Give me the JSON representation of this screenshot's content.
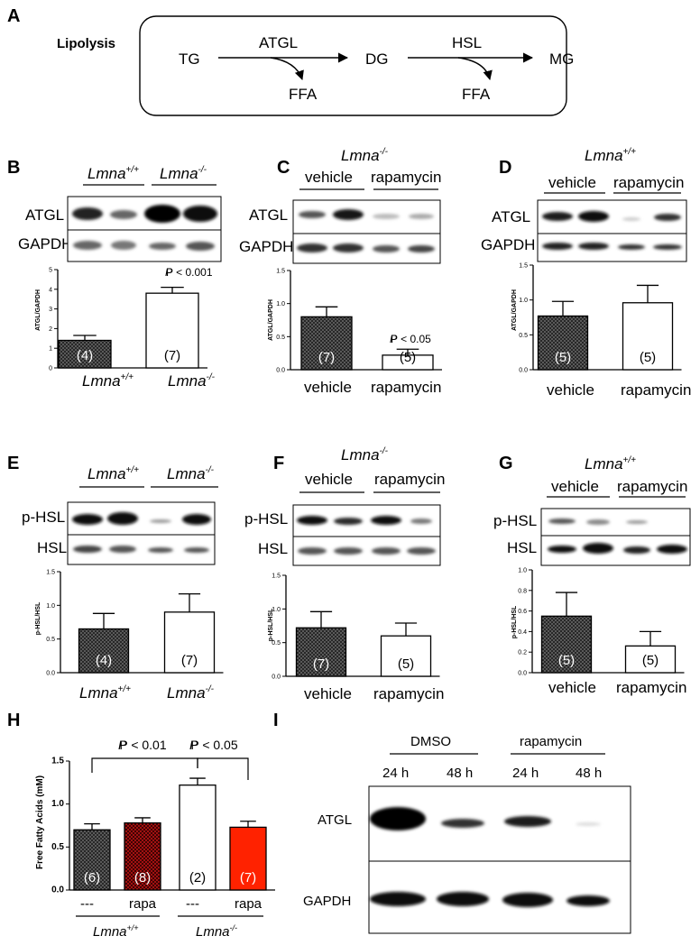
{
  "panelA": {
    "letter": "A",
    "title": "Lipolysis",
    "tg": "TG",
    "atgl": "ATGL",
    "dg": "DG",
    "hsl": "HSL",
    "mg": "MG",
    "ffa1": "FFA",
    "ffa2": "FFA"
  },
  "panelB": {
    "letter": "B",
    "lane_head_1": "Lmna",
    "lane_head_1_sup": "+/+",
    "lane_head_2": "Lmna",
    "lane_head_2_sup": "-/-",
    "row_1": "ATGL",
    "row_2": "GAPDH",
    "ylabel": "ATGL/GAPDH",
    "p_text": "P < 0.001",
    "x_1": "Lmna",
    "x_1_sup": "+/+",
    "x_2": "Lmna",
    "x_2_sup": "-/-",
    "n_1": "(4)",
    "n_2": "(7)"
  },
  "panelC": {
    "letter": "C",
    "genotype": "Lmna",
    "genotype_sup": "-/-",
    "lane_head_1": "vehicle",
    "lane_head_2": "rapamycin",
    "row_1": "ATGL",
    "row_2": "GAPDH",
    "ylabel": "ATGL/GAPDH",
    "p_text": "P < 0.05",
    "x_1": "vehicle",
    "x_2": "rapamycin",
    "n_1": "(7)",
    "n_2": "(5)"
  },
  "panelD": {
    "letter": "D",
    "genotype": "Lmna",
    "genotype_sup": "+/+",
    "lane_head_1": "vehicle",
    "lane_head_2": "rapamycin",
    "row_1": "ATGL",
    "row_2": "GAPDH",
    "ylabel": "ATGL/GAPDH",
    "x_1": "vehicle",
    "x_2": "rapamycin",
    "n_1": "(5)",
    "n_2": "(5)"
  },
  "panelE": {
    "letter": "E",
    "lane_head_1": "Lmna",
    "lane_head_1_sup": "+/+",
    "lane_head_2": "Lmna",
    "lane_head_2_sup": "-/-",
    "row_1": "p-HSL",
    "row_2": "HSL",
    "ylabel": "p-HSL/HSL",
    "x_1": "Lmna",
    "x_1_sup": "+/+",
    "x_2": "Lmna",
    "x_2_sup": "-/-",
    "n_1": "(4)",
    "n_2": "(7)"
  },
  "panelF": {
    "letter": "F",
    "genotype": "Lmna",
    "genotype_sup": "-/-",
    "lane_head_1": "vehicle",
    "lane_head_2": "rapamycin",
    "row_1": "p-HSL",
    "row_2": "HSL",
    "ylabel": "p-HSL/HSL",
    "x_1": "vehicle",
    "x_2": "rapamycin",
    "n_1": "(7)",
    "n_2": "(5)"
  },
  "panelG": {
    "letter": "G",
    "genotype": "Lmna",
    "genotype_sup": "+/+",
    "lane_head_1": "vehicle",
    "lane_head_2": "rapamycin",
    "row_1": "p-HSL",
    "row_2": "HSL",
    "ylabel": "p-HSL/HSL",
    "x_1": "vehicle",
    "x_2": "rapamycin",
    "n_1": "(5)",
    "n_2": "(5)"
  },
  "panelH": {
    "letter": "H",
    "ylabel": "Free Fatty Acids (mM)",
    "p_1": "P < 0.01",
    "p_2": "P < 0.05",
    "x_1": "---",
    "x_2": "rapa",
    "x_3": "---",
    "x_4": "rapa",
    "group_1": "Lmna",
    "group_1_sup": "+/+",
    "group_2": "Lmna",
    "group_2_sup": "-/-",
    "n_1": "(6)",
    "n_2": "(8)",
    "n_3": "(2)",
    "n_4": "(7)"
  },
  "panelI": {
    "letter": "I",
    "group_1": "DMSO",
    "group_2": "rapamycin",
    "t_1": "24 h",
    "t_2": "48 h",
    "t_3": "24 h",
    "t_4": "48 h",
    "row_1": "ATGL",
    "row_2": "GAPDH"
  },
  "chart_data": [
    {
      "panel": "B",
      "type": "bar",
      "categories": [
        "Lmna+/+",
        "Lmna-/-"
      ],
      "values": [
        1.4,
        3.8
      ],
      "errors": [
        0.25,
        0.3
      ],
      "n": [
        4,
        7
      ],
      "ylabel": "ATGL/GAPDH",
      "ylim": [
        0,
        5
      ],
      "yticks": [
        "0",
        "1",
        "2",
        "3",
        "4",
        "5"
      ],
      "fills": [
        "hatch-dark",
        "white"
      ]
    },
    {
      "panel": "C",
      "type": "bar",
      "categories": [
        "vehicle",
        "rapamycin"
      ],
      "values": [
        0.8,
        0.22
      ],
      "errors": [
        0.15,
        0.09
      ],
      "n": [
        7,
        5
      ],
      "ylabel": "ATGL/GAPDH",
      "ylim": [
        0,
        1.5
      ],
      "yticks": [
        "0.0",
        "0.5",
        "1.0",
        "1.5"
      ],
      "fills": [
        "hatch-dark",
        "white"
      ]
    },
    {
      "panel": "D",
      "type": "bar",
      "categories": [
        "vehicle",
        "rapamycin"
      ],
      "values": [
        0.77,
        0.96
      ],
      "errors": [
        0.21,
        0.25
      ],
      "n": [
        5,
        5
      ],
      "ylabel": "ATGL/GAPDH",
      "ylim": [
        0,
        1.5
      ],
      "yticks": [
        "0.0",
        "0.5",
        "1.0",
        "1.5"
      ],
      "fills": [
        "hatch-dark",
        "white"
      ]
    },
    {
      "panel": "E",
      "type": "bar",
      "categories": [
        "Lmna+/+",
        "Lmna-/-"
      ],
      "values": [
        0.65,
        0.9
      ],
      "errors": [
        0.23,
        0.27
      ],
      "n": [
        4,
        7
      ],
      "ylabel": "p-HSL/HSL",
      "ylim": [
        0,
        1.5
      ],
      "yticks": [
        "0.0",
        "0.5",
        "1.0",
        "1.5"
      ],
      "fills": [
        "hatch-dark",
        "white"
      ]
    },
    {
      "panel": "F",
      "type": "bar",
      "categories": [
        "vehicle",
        "rapamycin"
      ],
      "values": [
        0.72,
        0.6
      ],
      "errors": [
        0.24,
        0.19
      ],
      "n": [
        7,
        5
      ],
      "ylabel": "p-HSL/HSL",
      "ylim": [
        0,
        1.5
      ],
      "yticks": [
        "0.0",
        "0.5",
        "1.0",
        "1.5"
      ],
      "fills": [
        "hatch-dark",
        "white"
      ]
    },
    {
      "panel": "G",
      "type": "bar",
      "categories": [
        "vehicle",
        "rapamycin"
      ],
      "values": [
        0.55,
        0.26
      ],
      "errors": [
        0.23,
        0.14
      ],
      "n": [
        5,
        5
      ],
      "ylabel": "p-HSL/HSL",
      "ylim": [
        0,
        1.0
      ],
      "yticks": [
        "0.0",
        "0.2",
        "0.4",
        "0.6",
        "0.8",
        "1.0"
      ],
      "fills": [
        "hatch-dark",
        "white"
      ]
    },
    {
      "panel": "H",
      "type": "bar",
      "categories": [
        "---",
        "rapa",
        "---",
        "rapa"
      ],
      "groups": [
        "Lmna+/+",
        "Lmna+/+",
        "Lmna-/-",
        "Lmna-/-"
      ],
      "values": [
        0.7,
        0.78,
        1.22,
        0.73
      ],
      "errors": [
        0.07,
        0.06,
        0.08,
        0.07
      ],
      "n": [
        6,
        8,
        2,
        7
      ],
      "ylabel": "Free Fatty Acids (mM)",
      "ylim": [
        0,
        1.5
      ],
      "yticks": [
        "0.0",
        "0.5",
        "1.0",
        "1.5"
      ],
      "fills": [
        "hatch-dark",
        "hatch-red",
        "white",
        "#ff2200"
      ]
    }
  ]
}
